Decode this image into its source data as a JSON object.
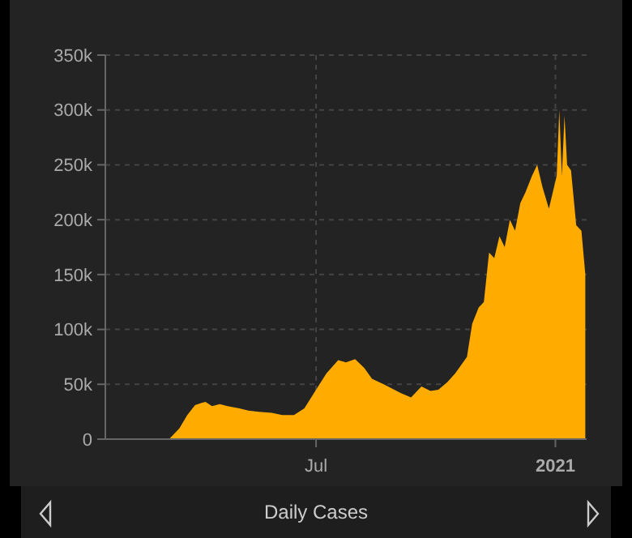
{
  "chart_data": {
    "type": "area",
    "title": "Daily Cases",
    "color": "#ffab00",
    "grid": true,
    "x": [
      "2020-01-21",
      "2020-03-10",
      "2020-03-18",
      "2020-03-24",
      "2020-03-30",
      "2020-04-04",
      "2020-04-07",
      "2020-04-12",
      "2020-04-18",
      "2020-04-24",
      "2020-05-03",
      "2020-05-10",
      "2020-05-18",
      "2020-05-28",
      "2020-06-05",
      "2020-06-14",
      "2020-06-22",
      "2020-07-01",
      "2020-07-09",
      "2020-07-18",
      "2020-07-24",
      "2020-07-31",
      "2020-08-07",
      "2020-08-13",
      "2020-08-22",
      "2020-09-04",
      "2020-09-12",
      "2020-09-20",
      "2020-09-27",
      "2020-10-03",
      "2020-10-10",
      "2020-10-16",
      "2020-10-25",
      "2020-10-29",
      "2020-11-03",
      "2020-11-07",
      "2020-11-11",
      "2020-11-15",
      "2020-11-19",
      "2020-11-23",
      "2020-11-27",
      "2020-12-01",
      "2020-12-05",
      "2020-12-09",
      "2020-12-14",
      "2020-12-18",
      "2020-12-22",
      "2020-12-27",
      "2021-01-02",
      "2021-01-04",
      "2021-01-06",
      "2021-01-08",
      "2021-01-10",
      "2021-01-13",
      "2021-01-17",
      "2021-01-21",
      "2021-01-24"
    ],
    "values": [
      0,
      0,
      10,
      22,
      31,
      33,
      34,
      30,
      32,
      30,
      28,
      26,
      25,
      24,
      22,
      22,
      28,
      45,
      60,
      72,
      70,
      73,
      65,
      55,
      50,
      42,
      38,
      48,
      44,
      45,
      52,
      60,
      75,
      105,
      120,
      125,
      170,
      165,
      185,
      175,
      200,
      190,
      215,
      225,
      240,
      250,
      230,
      210,
      240,
      300,
      240,
      295,
      250,
      245,
      195,
      190,
      150
    ],
    "xlim": [
      "2020-01-21",
      "2021-01-25"
    ],
    "xticks": [
      {
        "value": "2020-07-01",
        "label": "Jul"
      },
      {
        "value": "2021-01-01",
        "label": "2021"
      }
    ],
    "ylim": [
      0,
      350
    ],
    "yticks": [
      {
        "value": 0,
        "label": "0"
      },
      {
        "value": 50,
        "label": "50k"
      },
      {
        "value": 100,
        "label": "100k"
      },
      {
        "value": 150,
        "label": "150k"
      },
      {
        "value": 200,
        "label": "200k"
      },
      {
        "value": 250,
        "label": "250k"
      },
      {
        "value": 300,
        "label": "300k"
      },
      {
        "value": 350,
        "label": "350k"
      }
    ]
  }
}
